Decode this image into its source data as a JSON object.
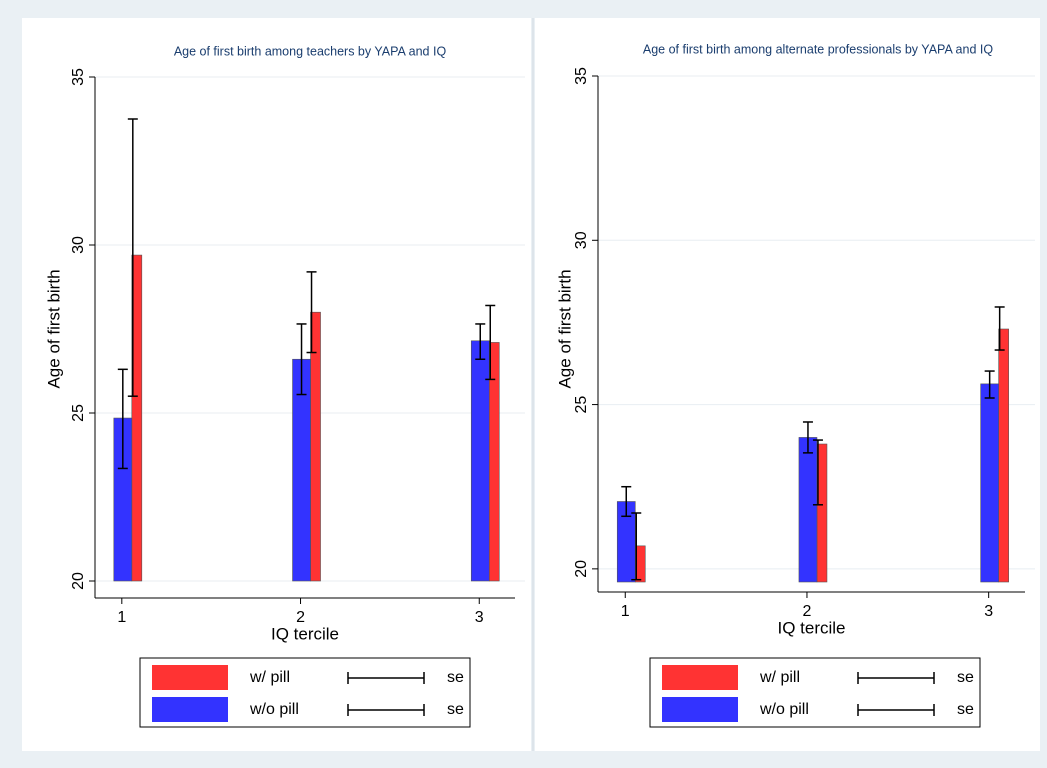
{
  "chart_data": [
    {
      "type": "bar",
      "title": "Age of first birth among teachers by YAPA and IQ",
      "ylabel": "Age of first birth",
      "xlabel": "IQ tercile",
      "x": [
        1,
        2,
        3
      ],
      "xlim": [
        0.85,
        3.2
      ],
      "xticks": [
        1,
        2,
        3
      ],
      "ylim": [
        20,
        35
      ],
      "yticks": [
        20,
        25,
        30,
        35
      ],
      "grid": true,
      "series": [
        {
          "name": "w/ pill",
          "color": "#ff3333",
          "values": [
            29.7,
            28.0,
            27.1
          ],
          "err_low": [
            25.5,
            26.8,
            26.0
          ],
          "err_high": [
            33.75,
            29.2,
            28.2
          ],
          "err_name": "se"
        },
        {
          "name": "w/o pill",
          "color": "#3333ff",
          "values": [
            24.85,
            26.6,
            27.15
          ],
          "err_low": [
            23.35,
            25.55,
            26.6
          ],
          "err_high": [
            26.3,
            27.65,
            27.65
          ],
          "err_name": "se"
        }
      ]
    },
    {
      "type": "bar",
      "title": "Age of first birth among alternate professionals by YAPA and IQ",
      "ylabel": "Age of first birth",
      "xlabel": "IQ tercile",
      "x": [
        1,
        2,
        3
      ],
      "xlim": [
        0.85,
        3.2
      ],
      "xticks": [
        1,
        2,
        3
      ],
      "ylim": [
        19.6,
        35
      ],
      "yticks": [
        20,
        25,
        30,
        35
      ],
      "grid": true,
      "series": [
        {
          "name": "w/ pill",
          "color": "#ff3333",
          "values": [
            20.7,
            23.8,
            27.3
          ],
          "err_low": [
            19.67,
            21.95,
            26.66
          ],
          "err_high": [
            21.7,
            23.92,
            27.97
          ],
          "err_name": "se"
        },
        {
          "name": "w/o pill",
          "color": "#3333ff",
          "values": [
            22.05,
            24.0,
            25.63
          ],
          "err_low": [
            21.6,
            23.53,
            25.2
          ],
          "err_high": [
            22.5,
            24.47,
            26.02
          ],
          "err_name": "se"
        }
      ]
    }
  ]
}
